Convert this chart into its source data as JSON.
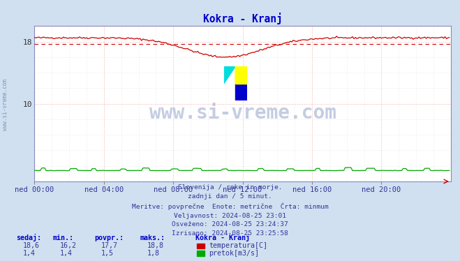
{
  "title": "Kokra - Kranj",
  "title_color": "#0000cc",
  "bg_color": "#d0e0f0",
  "plot_bg_color": "#ffffff",
  "x_labels": [
    "ned 00:00",
    "ned 04:00",
    "ned 08:00",
    "ned 12:00",
    "ned 16:00",
    "ned 20:00"
  ],
  "x_ticks": [
    0,
    48,
    96,
    144,
    192,
    240
  ],
  "ylim": [
    0,
    20
  ],
  "xlim": [
    0,
    288
  ],
  "temp_color": "#cc0000",
  "flow_color": "#00aa00",
  "avg_value": 17.7,
  "info_lines": [
    "Slovenija / reke in morje.",
    "zadnji dan / 5 minut.",
    "Meritve: povprečne  Enote: metrične  Črta: minmum",
    "Veljavnost: 2024-08-25 23:01",
    "Osveženo: 2024-08-25 23:24:37",
    "Izrisano: 2024-08-25 23:25:58"
  ],
  "table_headers": [
    "sedaj:",
    "min.:",
    "povpr.:",
    "maks.:",
    "Kokra - Kranj"
  ],
  "table_row1": [
    "18,6",
    "16,2",
    "17,7",
    "18,8"
  ],
  "table_row2": [
    "1,4",
    "1,4",
    "1,5",
    "1,8"
  ],
  "legend_label1": "temperatura[C]",
  "legend_label2": "pretok[m3/s]",
  "legend_color1": "#cc0000",
  "legend_color2": "#00aa00",
  "sidebar_text": "www.si-vreme.com",
  "sidebar_color": "#7799bb",
  "watermark_text": "www.si-vreme.com",
  "watermark_color": "#1a3a8a",
  "watermark_alpha": 0.25
}
